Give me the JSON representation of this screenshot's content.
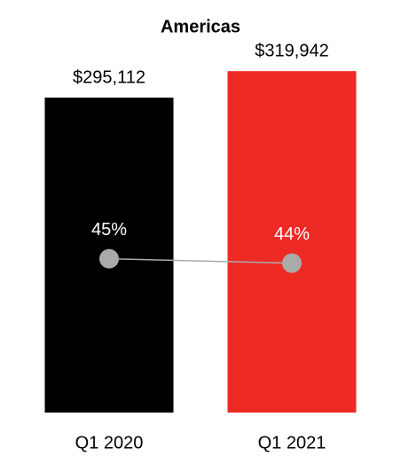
{
  "chart_data": {
    "type": "bar",
    "title": "Americas",
    "categories": [
      "Q1 2020",
      "Q1 2021"
    ],
    "series": [
      {
        "type": "bar",
        "colors": [
          "#000000",
          "#ee2a24"
        ],
        "values": [
          295112,
          319942
        ],
        "value_labels": [
          "$295,112",
          "$319,942"
        ]
      },
      {
        "type": "line",
        "axis": "y2",
        "color": "#aaaaaa",
        "values": [
          45,
          44
        ],
        "value_labels": [
          "45%",
          "44%"
        ]
      }
    ],
    "ylim": [
      0,
      350000
    ],
    "y2lim": [
      10,
      95
    ]
  }
}
